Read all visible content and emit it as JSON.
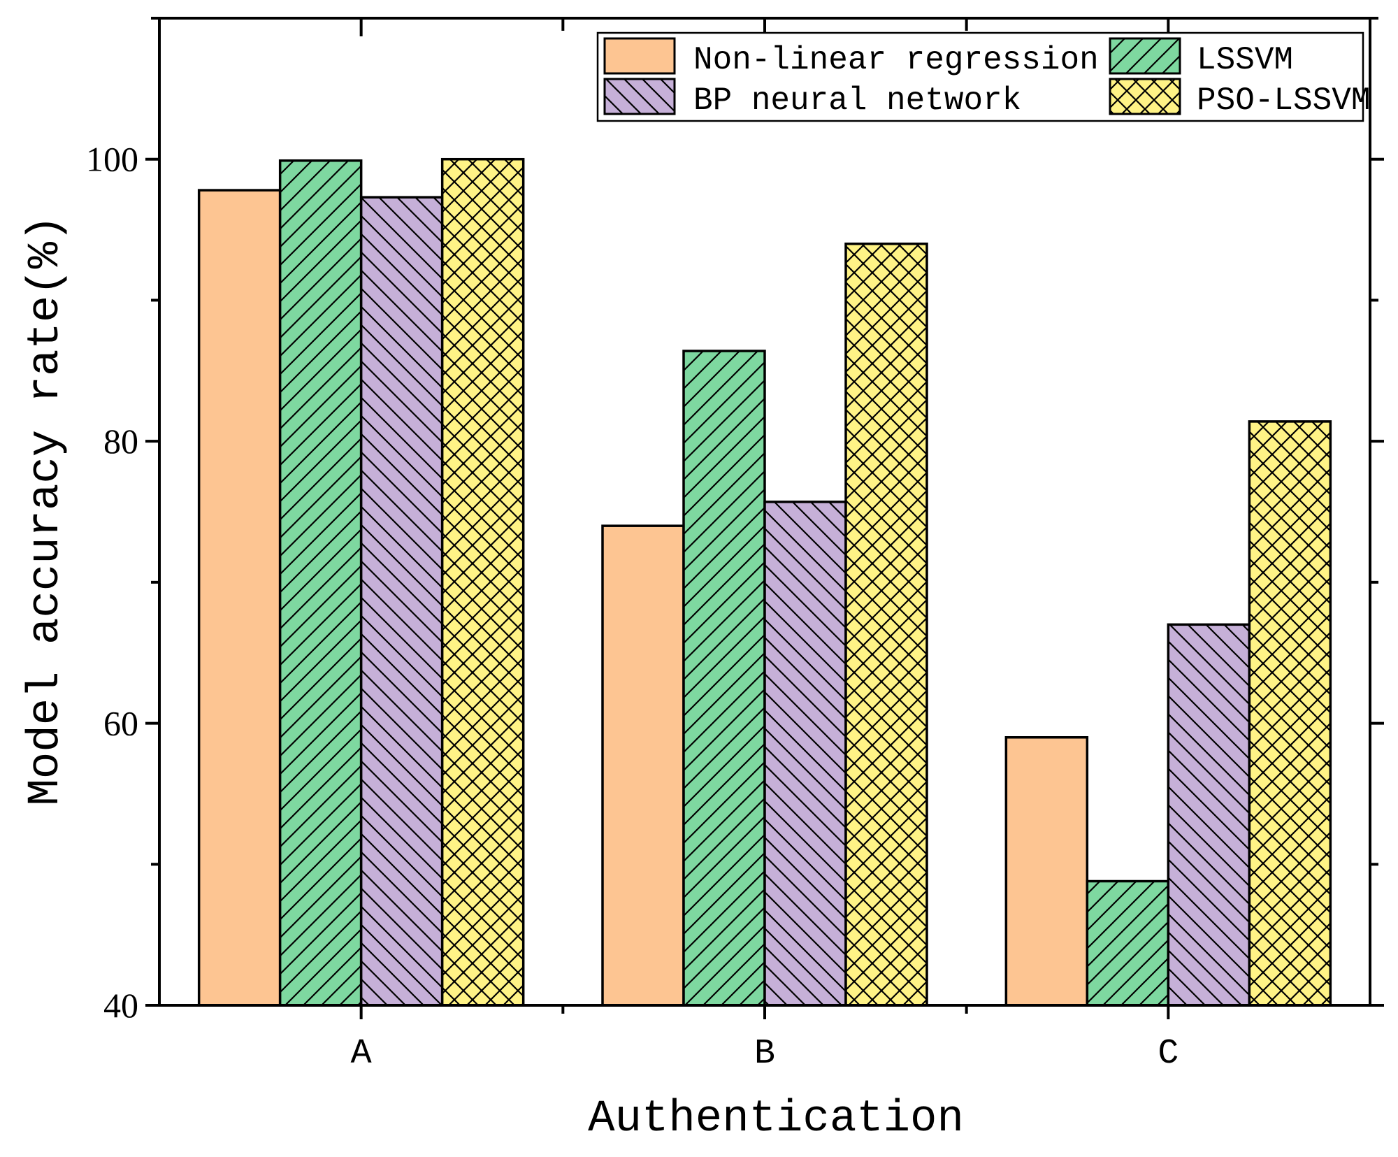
{
  "chart_data": {
    "type": "bar",
    "title": "",
    "xlabel": "Authentication",
    "ylabel": "Model accuracy rate(%)",
    "ylim": [
      40,
      110
    ],
    "yticks": [
      40,
      60,
      80,
      100
    ],
    "grid": false,
    "legend_position": "top-right",
    "categories": [
      "A",
      "B",
      "C"
    ],
    "series": [
      {
        "name": "Non-linear regression",
        "values": [
          97.8,
          74.0,
          59.0
        ],
        "color": "#fdc592",
        "pattern": "none"
      },
      {
        "name": "LSSVM",
        "values": [
          99.9,
          86.4,
          48.8
        ],
        "color": "#7ed8a0",
        "pattern": "forward-diagonal"
      },
      {
        "name": "BP neural network",
        "values": [
          97.3,
          75.7,
          67.0
        ],
        "color": "#c6b0d8",
        "pattern": "back-diagonal"
      },
      {
        "name": "PSO-LSSVM",
        "values": [
          100.0,
          94.0,
          81.4
        ],
        "color": "#fff386",
        "pattern": "crosshatch"
      }
    ]
  }
}
